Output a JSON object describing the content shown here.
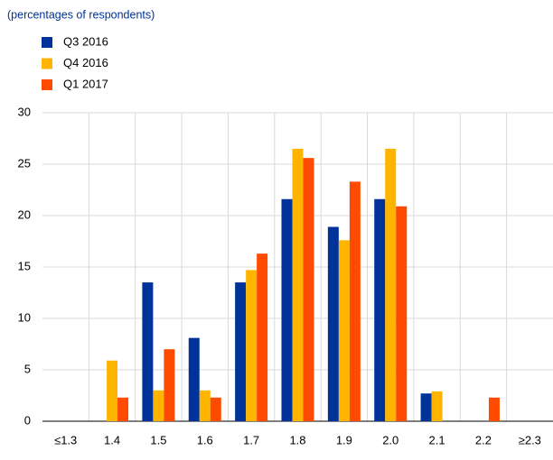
{
  "chart_data": {
    "type": "bar",
    "subtitle": "(percentages of respondents)",
    "categories": [
      "≤1.3",
      "1.4",
      "1.5",
      "1.6",
      "1.7",
      "1.8",
      "1.9",
      "2.0",
      "2.1",
      "2.2",
      "≥2.3"
    ],
    "series": [
      {
        "name": "Q3 2016",
        "color": "#003399",
        "values": [
          0,
          0,
          13.5,
          8.1,
          13.5,
          21.6,
          18.9,
          21.6,
          2.7,
          0,
          0
        ]
      },
      {
        "name": "Q4 2016",
        "color": "#ffb400",
        "values": [
          0,
          5.9,
          3.0,
          3.0,
          14.7,
          26.5,
          17.6,
          26.5,
          2.9,
          0,
          0
        ]
      },
      {
        "name": "Q1 2017",
        "color": "#ff4b00",
        "values": [
          0,
          2.3,
          7.0,
          2.3,
          16.3,
          25.6,
          23.3,
          20.9,
          0,
          2.3,
          0
        ]
      }
    ],
    "ylim": [
      0,
      30
    ],
    "yticks": [
      0,
      5,
      10,
      15,
      20,
      25,
      30
    ],
    "grid": true
  }
}
